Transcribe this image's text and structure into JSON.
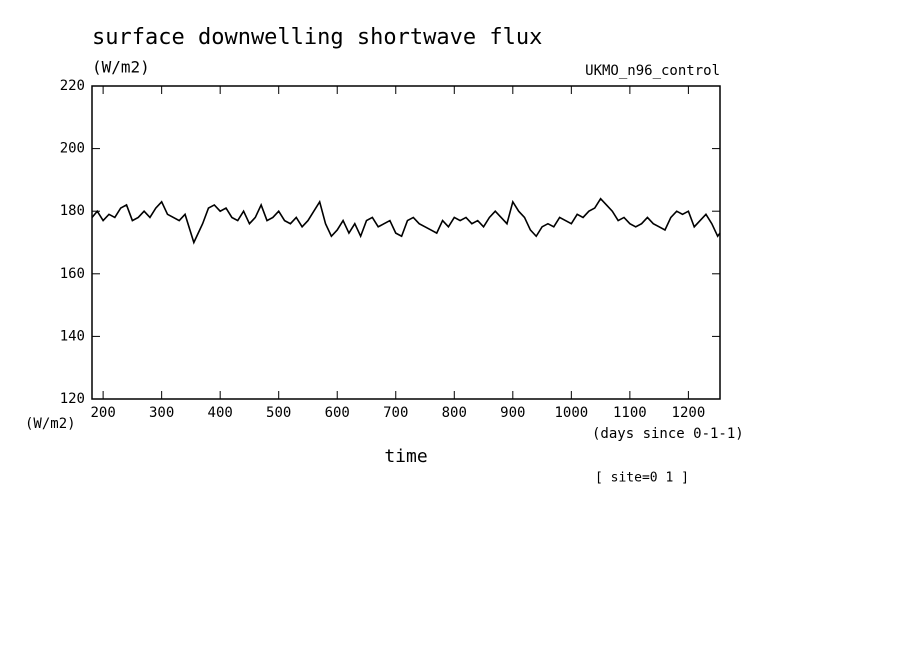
{
  "chart_data": {
    "type": "line",
    "title": "surface downwelling shortwave flux",
    "subtitle": "(W/m2)",
    "dataset_label": "UKMO_n96_control",
    "y_unit_label": "(W/m2)",
    "x_unit_label": "(days since 0-1-1)",
    "x_label": "time",
    "annotation": "[ site=0 1 ]",
    "x": [
      181,
      190,
      200,
      210,
      220,
      230,
      240,
      250,
      260,
      270,
      280,
      290,
      300,
      310,
      320,
      330,
      340,
      350,
      355,
      360,
      370,
      380,
      390,
      400,
      410,
      420,
      430,
      440,
      450,
      460,
      470,
      480,
      490,
      500,
      510,
      520,
      530,
      540,
      550,
      560,
      570,
      580,
      590,
      600,
      610,
      620,
      630,
      640,
      650,
      660,
      670,
      680,
      690,
      700,
      710,
      720,
      730,
      740,
      750,
      760,
      770,
      780,
      790,
      800,
      810,
      820,
      830,
      840,
      850,
      860,
      870,
      880,
      890,
      900,
      910,
      920,
      930,
      940,
      950,
      960,
      970,
      980,
      990,
      1000,
      1010,
      1020,
      1030,
      1040,
      1050,
      1060,
      1070,
      1080,
      1090,
      1100,
      1110,
      1120,
      1130,
      1140,
      1150,
      1160,
      1170,
      1180,
      1190,
      1200,
      1210,
      1220,
      1230,
      1240,
      1250,
      1254
    ],
    "series": [
      {
        "color": "#000000",
        "values": [
          178,
          180,
          177,
          179,
          178,
          181,
          182,
          177,
          178,
          180,
          178,
          181,
          183,
          179,
          178,
          177,
          179,
          173,
          170,
          172,
          176,
          181,
          182,
          180,
          181,
          178,
          177,
          180,
          176,
          178,
          182,
          177,
          178,
          180,
          177,
          176,
          178,
          175,
          177,
          180,
          183,
          176,
          172,
          174,
          177,
          173,
          176,
          172,
          177,
          178,
          175,
          176,
          177,
          173,
          172,
          177,
          178,
          176,
          175,
          174,
          173,
          177,
          175,
          178,
          177,
          178,
          176,
          177,
          175,
          178,
          180,
          178,
          176,
          183,
          180,
          178,
          174,
          172,
          175,
          176,
          175,
          178,
          177,
          176,
          179,
          178,
          180,
          181,
          184,
          182,
          180,
          177,
          178,
          176,
          175,
          176,
          178,
          176,
          175,
          174,
          178,
          180,
          179,
          180,
          175,
          177,
          179,
          176,
          172,
          173
        ]
      }
    ],
    "xlim": [
      181,
      1254
    ],
    "ylim": [
      120,
      220
    ],
    "xticks": [
      200,
      300,
      400,
      500,
      600,
      700,
      800,
      900,
      1000,
      1100,
      1200
    ],
    "yticks": [
      120,
      140,
      160,
      180,
      200,
      220
    ]
  }
}
